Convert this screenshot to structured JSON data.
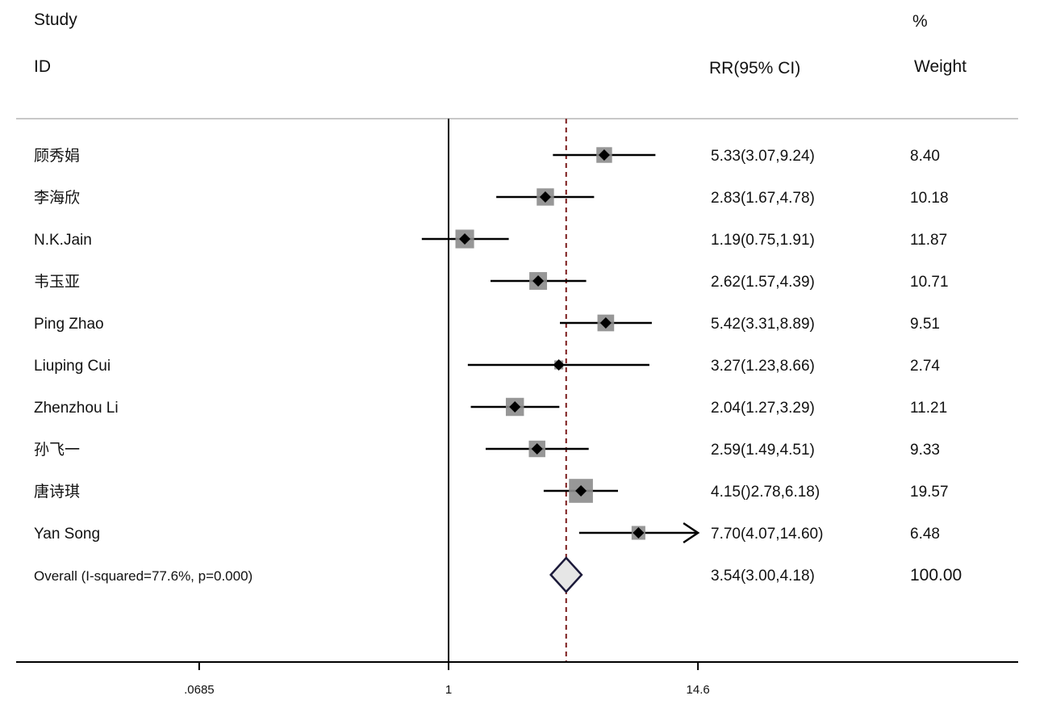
{
  "header": {
    "study": "Study",
    "id": "ID",
    "effect": "RR(95% CI)",
    "pct": "%",
    "weight": "Weight"
  },
  "chart_data": {
    "type": "forest",
    "x_scale": "log",
    "xlim": [
      0.0685,
      14.6
    ],
    "ticks": [
      {
        "value": 0.0685,
        "label": ".0685"
      },
      {
        "value": 1,
        "label": "1"
      },
      {
        "value": 14.6,
        "label": "14.6"
      }
    ],
    "null_line": 1,
    "pooled_line": 3.54,
    "studies": [
      {
        "name": "顾秀娟",
        "rr": 5.33,
        "lo": 3.07,
        "hi": 9.24,
        "ci_text": "5.33(3.07,9.24)",
        "weight": 8.4,
        "weight_text": "8.40"
      },
      {
        "name": "李海欣",
        "rr": 2.83,
        "lo": 1.67,
        "hi": 4.78,
        "ci_text": "2.83(1.67,4.78)",
        "weight": 10.18,
        "weight_text": "10.18"
      },
      {
        "name": "N.K.Jain",
        "rr": 1.19,
        "lo": 0.75,
        "hi": 1.91,
        "ci_text": "1.19(0.75,1.91)",
        "weight": 11.87,
        "weight_text": "11.87"
      },
      {
        "name": "韦玉亚",
        "rr": 2.62,
        "lo": 1.57,
        "hi": 4.39,
        "ci_text": "2.62(1.57,4.39)",
        "weight": 10.71,
        "weight_text": "10.71"
      },
      {
        "name": "Ping Zhao",
        "rr": 5.42,
        "lo": 3.31,
        "hi": 8.89,
        "ci_text": "5.42(3.31,8.89)",
        "weight": 9.51,
        "weight_text": "9.51"
      },
      {
        "name": "Liuping Cui",
        "rr": 3.27,
        "lo": 1.23,
        "hi": 8.66,
        "ci_text": "3.27(1.23,8.66)",
        "weight": 2.74,
        "weight_text": "2.74"
      },
      {
        "name": "Zhenzhou Li",
        "rr": 2.04,
        "lo": 1.27,
        "hi": 3.29,
        "ci_text": "2.04(1.27,3.29)",
        "weight": 11.21,
        "weight_text": "11.21"
      },
      {
        "name": "孙飞一",
        "rr": 2.59,
        "lo": 1.49,
        "hi": 4.51,
        "ci_text": "2.59(1.49,4.51)",
        "weight": 9.33,
        "weight_text": "9.33"
      },
      {
        "name": "唐诗琪",
        "rr": 4.15,
        "lo": 2.78,
        "hi": 6.18,
        "ci_text": "4.15()2.78,6.18)",
        "weight": 19.57,
        "weight_text": "19.57"
      },
      {
        "name": "Yan Song",
        "rr": 7.7,
        "lo": 4.07,
        "hi": 14.6,
        "ci_text": "7.70(4.07,14.60)",
        "weight": 6.48,
        "weight_text": "6.48",
        "arrow": true
      }
    ],
    "overall": {
      "label": "Overall (I-squared=77.6%,  p=0.000)",
      "rr": 3.54,
      "lo": 3.0,
      "hi": 4.18,
      "ci_text": "3.54(3.00,4.18)",
      "weight_text": "100.00"
    },
    "colors": {
      "marker": "#000000",
      "box": "#8c8c8c",
      "pooled_line": "#7a1a1a",
      "diamond_stroke": "#1c1a3a",
      "diamond_fill": "#e6e6e6"
    }
  }
}
